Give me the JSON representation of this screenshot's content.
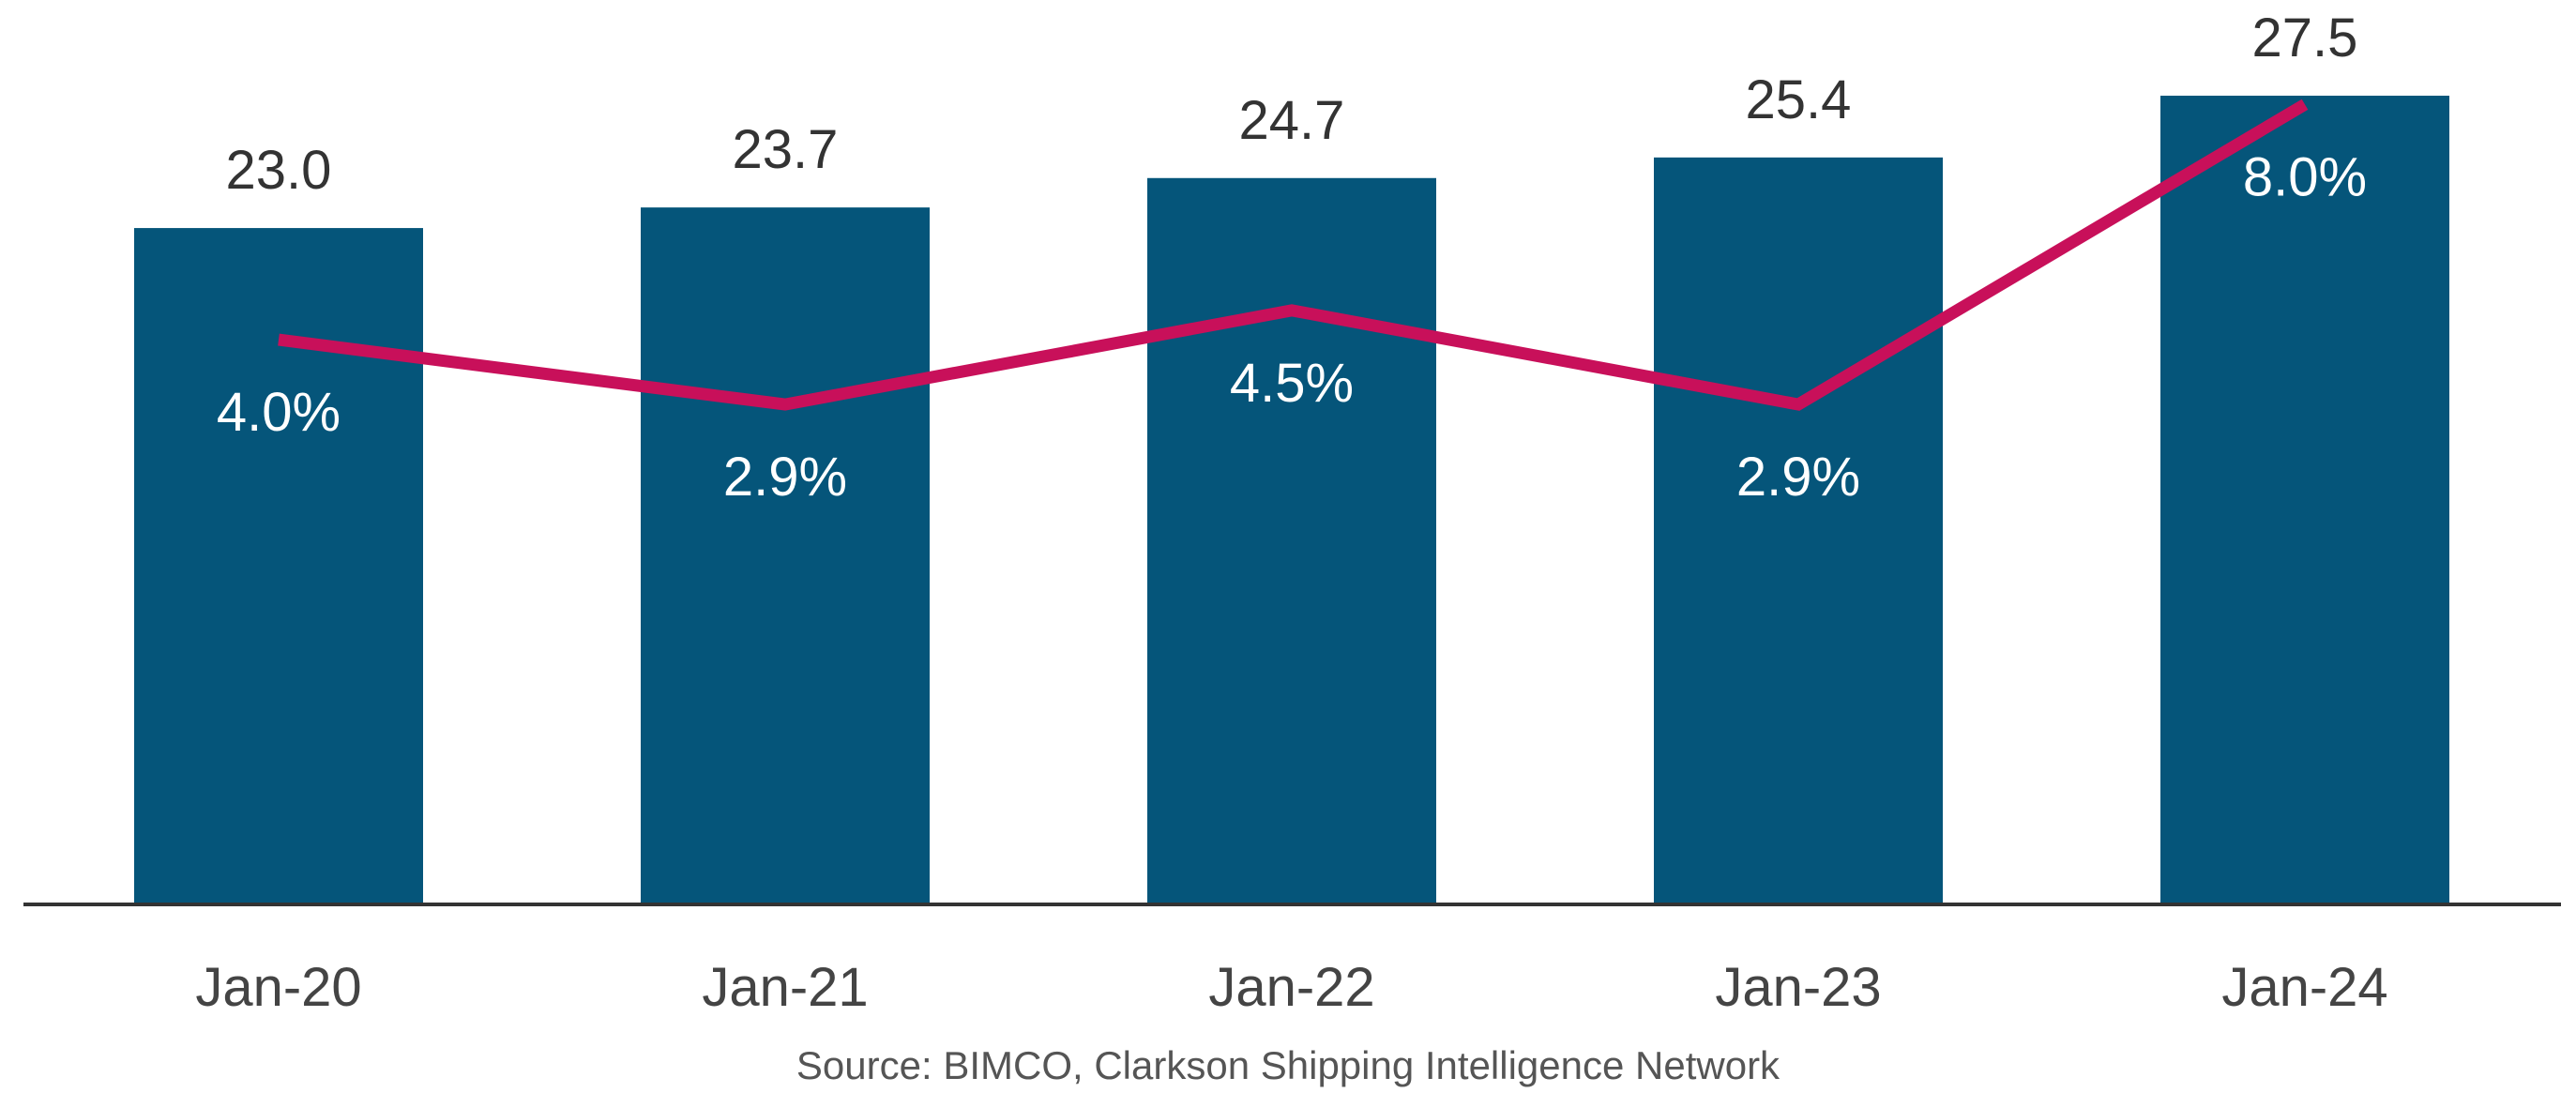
{
  "chart_data": {
    "type": "bar",
    "categories": [
      "Jan-20",
      "Jan-21",
      "Jan-22",
      "Jan-23",
      "Jan-24"
    ],
    "series": [
      {
        "type": "bar",
        "values": [
          23.0,
          23.7,
          24.7,
          25.4,
          27.5
        ],
        "color": "#05557a"
      },
      {
        "type": "line",
        "values": [
          4.0,
          2.9,
          4.5,
          2.9,
          8.0
        ],
        "color": "#c8105a"
      }
    ],
    "value_labels": [
      "23.0",
      "23.7",
      "24.7",
      "25.4",
      "27.5"
    ],
    "line_labels": [
      "4.0%",
      "2.9%",
      "4.5%",
      "2.9%",
      "8.0%"
    ],
    "bar_ylim": [
      0,
      29
    ],
    "line_ylim": [
      -5.6,
      8.5
    ],
    "title": "",
    "xlabel": "",
    "ylabel": "",
    "grid": false,
    "legend": "none"
  },
  "source": "Source: BIMCO, Clarkson Shipping Intelligence Network"
}
